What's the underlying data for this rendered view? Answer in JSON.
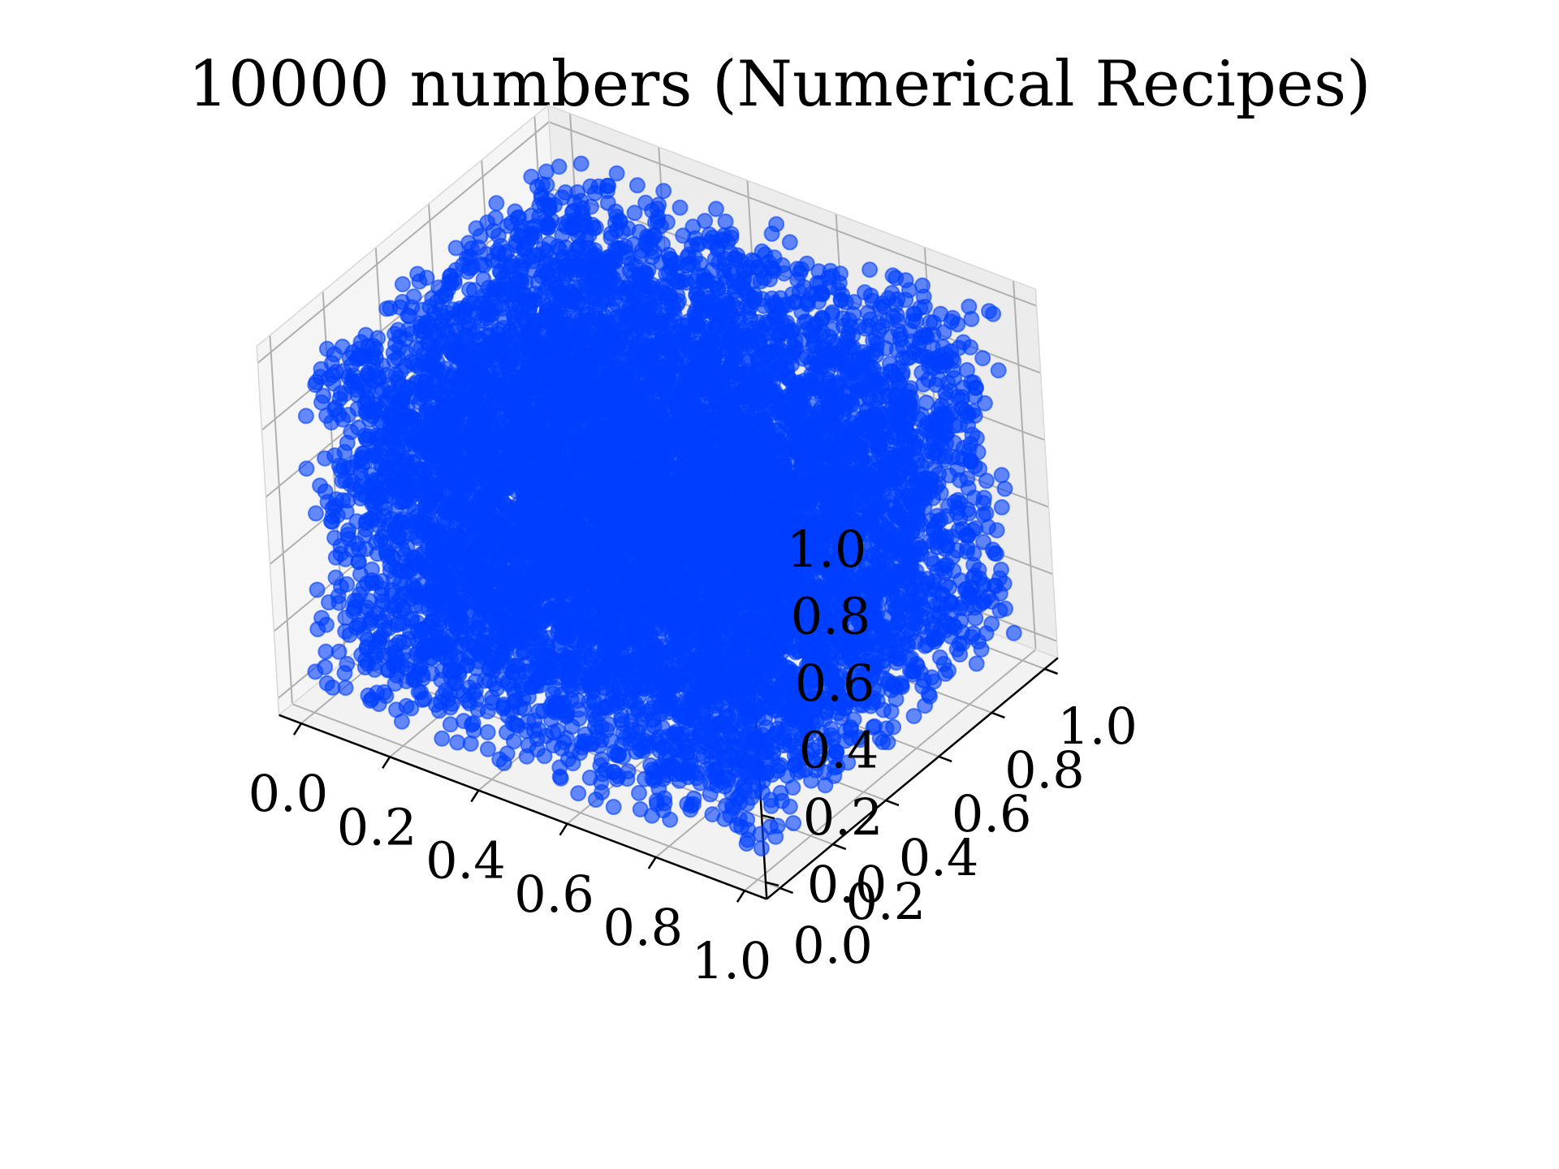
{
  "chart_data": {
    "type": "scatter",
    "title": "10000 numbers (Numerical Recipes)",
    "xlabel": "",
    "ylabel": "",
    "zlabel": "",
    "xlim": [
      0.0,
      1.0
    ],
    "ylim": [
      0.0,
      1.0
    ],
    "zlim": [
      0.0,
      1.0
    ],
    "x_ticks": [
      "0.0",
      "0.2",
      "0.4",
      "0.6",
      "0.8",
      "1.0"
    ],
    "y_ticks": [
      "0.0",
      "0.2",
      "0.4",
      "0.6",
      "0.8",
      "1.0"
    ],
    "z_ticks": [
      "0.0",
      "0.2",
      "0.4",
      "0.6",
      "0.8",
      "1.0"
    ],
    "grid": true,
    "projection": "3d",
    "n_points": 10000,
    "distribution": "uniform",
    "marker_color": "#0040ff",
    "marker_alpha": 0.6
  }
}
